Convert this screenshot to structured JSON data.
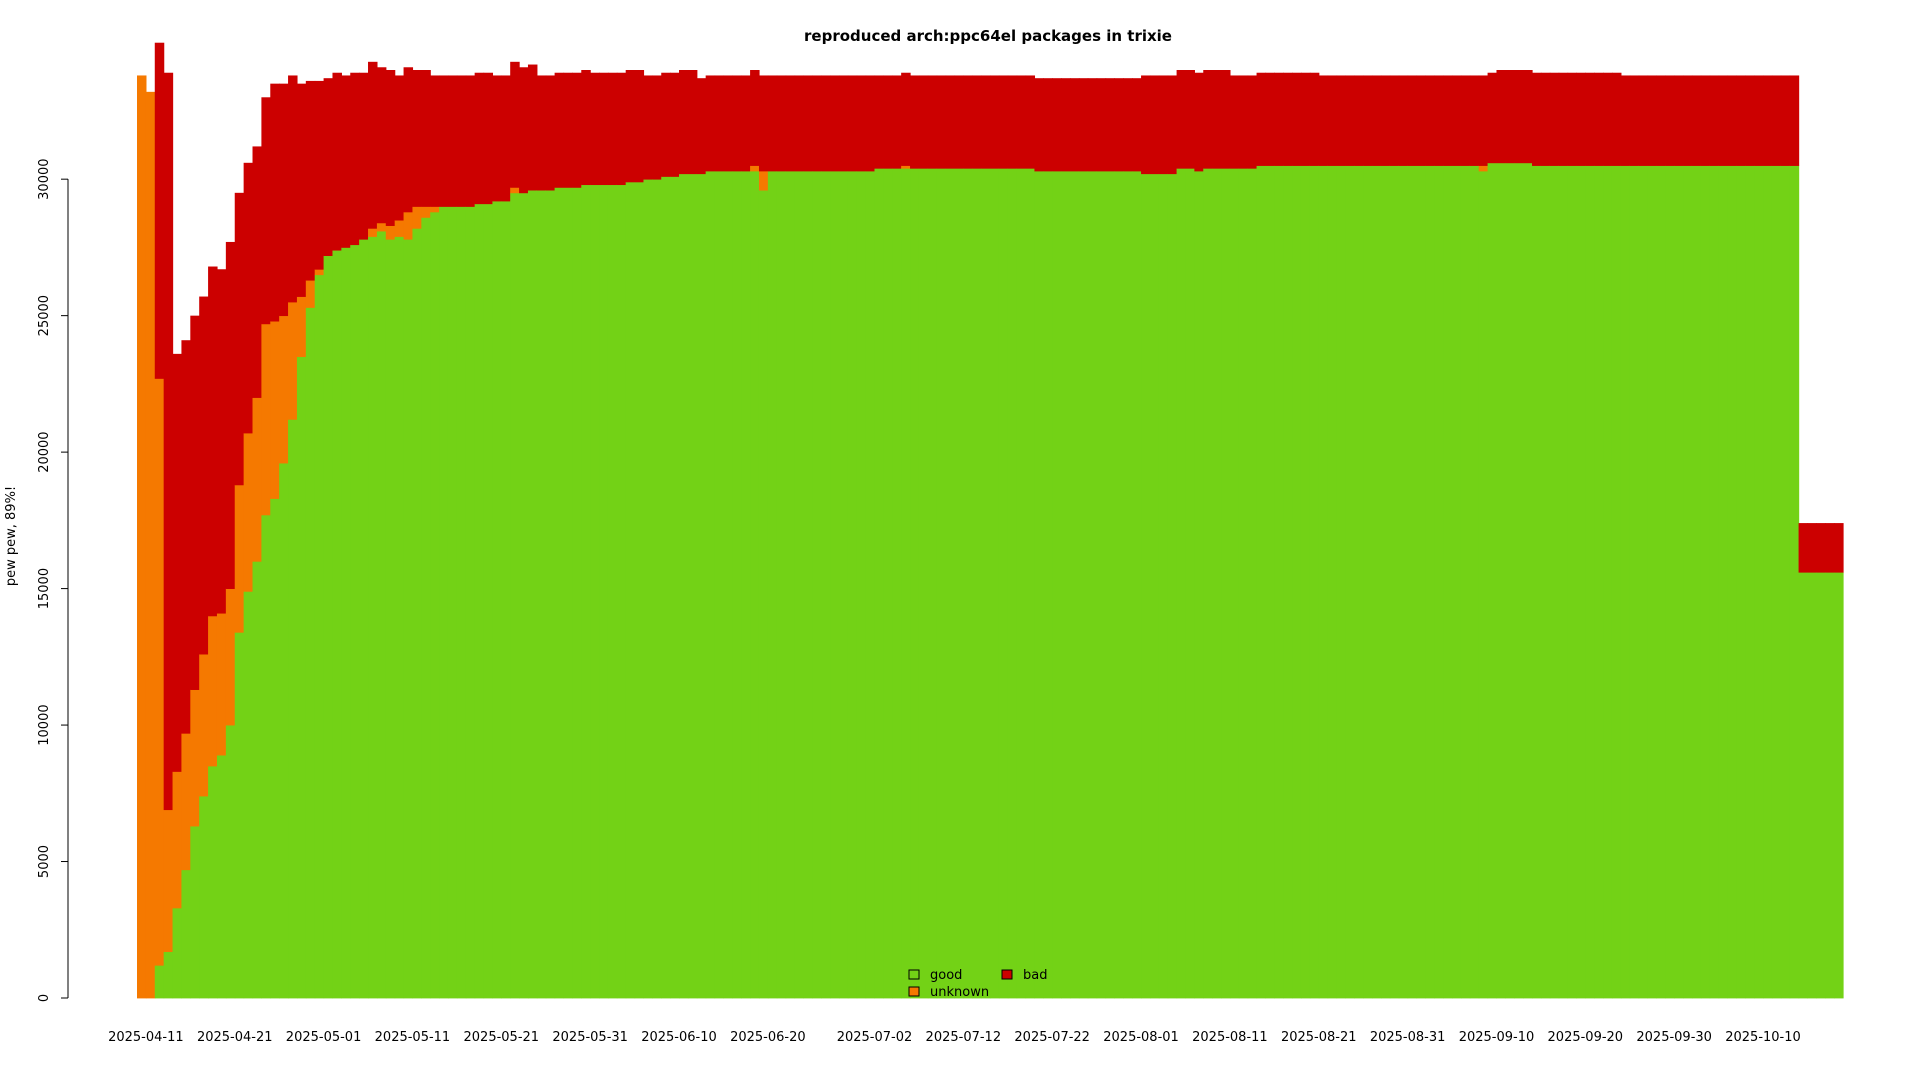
{
  "chart_data": {
    "type": "area",
    "title": "reproduced arch:ppc64el packages in trixie",
    "xlabel": "",
    "ylabel": "pew pew, 89%!",
    "ylim": [
      0,
      34000
    ],
    "yticks": [
      0,
      5000,
      10000,
      15000,
      20000,
      25000,
      30000
    ],
    "xrange": [
      "2025-04-10",
      "2025-10-19"
    ],
    "xticks": [
      "2025-04-11",
      "2025-04-21",
      "2025-05-01",
      "2025-05-11",
      "2025-05-21",
      "2025-05-31",
      "2025-06-10",
      "2025-06-20",
      "2025-07-02",
      "2025-07-12",
      "2025-07-22",
      "2025-08-01",
      "2025-08-11",
      "2025-08-21",
      "2025-08-31",
      "2025-09-10",
      "2025-09-20",
      "2025-09-30",
      "2025-10-10"
    ],
    "stacking": "good, unknown, bad stacked bottom-up",
    "colors": {
      "good": "#73d216",
      "unknown": "#f57900",
      "bad": "#cc0000"
    },
    "legend": {
      "position": "bottom-center",
      "items": [
        {
          "key": "good",
          "label": "good"
        },
        {
          "key": "unknown",
          "label": "unknown"
        },
        {
          "key": "bad",
          "label": "bad"
        }
      ]
    },
    "series": [
      {
        "name": "good",
        "points": [
          [
            "2025-04-10",
            0
          ],
          [
            "2025-04-12",
            1200
          ],
          [
            "2025-04-13",
            1700
          ],
          [
            "2025-04-14",
            3300
          ],
          [
            "2025-04-15",
            4700
          ],
          [
            "2025-04-16",
            6300
          ],
          [
            "2025-04-17",
            7400
          ],
          [
            "2025-04-18",
            8500
          ],
          [
            "2025-04-19",
            8900
          ],
          [
            "2025-04-20",
            10000
          ],
          [
            "2025-04-21",
            13400
          ],
          [
            "2025-04-22",
            14900
          ],
          [
            "2025-04-23",
            16000
          ],
          [
            "2025-04-24",
            17700
          ],
          [
            "2025-04-25",
            18300
          ],
          [
            "2025-04-26",
            19600
          ],
          [
            "2025-04-27",
            21200
          ],
          [
            "2025-04-28",
            23500
          ],
          [
            "2025-04-29",
            25300
          ],
          [
            "2025-04-30",
            26500
          ],
          [
            "2025-05-01",
            27200
          ],
          [
            "2025-05-02",
            27400
          ],
          [
            "2025-05-03",
            27500
          ],
          [
            "2025-05-04",
            27600
          ],
          [
            "2025-05-05",
            27800
          ],
          [
            "2025-05-06",
            27900
          ],
          [
            "2025-05-07",
            28100
          ],
          [
            "2025-05-08",
            27800
          ],
          [
            "2025-05-09",
            27900
          ],
          [
            "2025-05-10",
            27800
          ],
          [
            "2025-05-11",
            28200
          ],
          [
            "2025-05-12",
            28600
          ],
          [
            "2025-05-13",
            28800
          ],
          [
            "2025-05-14",
            29000
          ],
          [
            "2025-05-16",
            29000
          ],
          [
            "2025-05-18",
            29100
          ],
          [
            "2025-05-20",
            29200
          ],
          [
            "2025-05-22",
            29500
          ],
          [
            "2025-05-24",
            29600
          ],
          [
            "2025-05-27",
            29700
          ],
          [
            "2025-05-30",
            29800
          ],
          [
            "2025-06-04",
            29900
          ],
          [
            "2025-06-06",
            30000
          ],
          [
            "2025-06-08",
            30100
          ],
          [
            "2025-06-10",
            30200
          ],
          [
            "2025-06-13",
            30300
          ],
          [
            "2025-06-18",
            30300
          ],
          [
            "2025-06-19",
            29600
          ],
          [
            "2025-06-20",
            30300
          ],
          [
            "2025-06-24",
            30300
          ],
          [
            "2025-07-02",
            30400
          ],
          [
            "2025-07-08",
            30400
          ],
          [
            "2025-07-14",
            30400
          ],
          [
            "2025-07-20",
            30300
          ],
          [
            "2025-07-26",
            30300
          ],
          [
            "2025-08-01",
            30200
          ],
          [
            "2025-08-05",
            30400
          ],
          [
            "2025-08-07",
            30300
          ],
          [
            "2025-08-08",
            30400
          ],
          [
            "2025-08-14",
            30500
          ],
          [
            "2025-08-20",
            30500
          ],
          [
            "2025-08-30",
            30500
          ],
          [
            "2025-09-07",
            30500
          ],
          [
            "2025-09-08",
            30300
          ],
          [
            "2025-09-09",
            30600
          ],
          [
            "2025-09-14",
            30500
          ],
          [
            "2025-09-24",
            30500
          ],
          [
            "2025-10-14",
            15600
          ],
          [
            "2025-10-18",
            15600
          ]
        ]
      },
      {
        "name": "unknown",
        "points": [
          [
            "2025-04-10",
            33800
          ],
          [
            "2025-04-11",
            33200
          ],
          [
            "2025-04-12",
            21500
          ],
          [
            "2025-04-13",
            5200
          ],
          [
            "2025-04-14",
            5000
          ],
          [
            "2025-04-15",
            5000
          ],
          [
            "2025-04-16",
            5000
          ],
          [
            "2025-04-17",
            5200
          ],
          [
            "2025-04-18",
            5500
          ],
          [
            "2025-04-19",
            5200
          ],
          [
            "2025-04-20",
            5000
          ],
          [
            "2025-04-21",
            5400
          ],
          [
            "2025-04-22",
            5800
          ],
          [
            "2025-04-23",
            6000
          ],
          [
            "2025-04-24",
            7000
          ],
          [
            "2025-04-25",
            6500
          ],
          [
            "2025-04-26",
            5400
          ],
          [
            "2025-04-27",
            4300
          ],
          [
            "2025-04-28",
            2200
          ],
          [
            "2025-04-29",
            1000
          ],
          [
            "2025-04-30",
            200
          ],
          [
            "2025-05-01",
            0
          ],
          [
            "2025-05-06",
            300
          ],
          [
            "2025-05-08",
            500
          ],
          [
            "2025-05-09",
            600
          ],
          [
            "2025-05-10",
            1000
          ],
          [
            "2025-05-11",
            800
          ],
          [
            "2025-05-12",
            400
          ],
          [
            "2025-05-13",
            200
          ],
          [
            "2025-05-14",
            0
          ],
          [
            "2025-05-22",
            200
          ],
          [
            "2025-05-23",
            0
          ],
          [
            "2025-06-18",
            200
          ],
          [
            "2025-06-19",
            700
          ],
          [
            "2025-06-20",
            0
          ],
          [
            "2025-07-05",
            100
          ],
          [
            "2025-07-06",
            0
          ],
          [
            "2025-09-08",
            200
          ],
          [
            "2025-09-09",
            0
          ],
          [
            "2025-10-18",
            0
          ]
        ]
      },
      {
        "name": "bad",
        "points": [
          [
            "2025-04-10",
            0
          ],
          [
            "2025-04-11",
            0
          ],
          [
            "2025-04-12",
            12300
          ],
          [
            "2025-04-13",
            27000
          ],
          [
            "2025-04-14",
            15300
          ],
          [
            "2025-04-15",
            14400
          ],
          [
            "2025-04-16",
            13700
          ],
          [
            "2025-04-17",
            13100
          ],
          [
            "2025-04-18",
            12800
          ],
          [
            "2025-04-19",
            12600
          ],
          [
            "2025-04-20",
            12700
          ],
          [
            "2025-04-21",
            10700
          ],
          [
            "2025-04-22",
            9900
          ],
          [
            "2025-04-23",
            9200
          ],
          [
            "2025-04-24",
            8300
          ],
          [
            "2025-04-25",
            8700
          ],
          [
            "2025-04-26",
            8500
          ],
          [
            "2025-04-27",
            8300
          ],
          [
            "2025-04-28",
            7800
          ],
          [
            "2025-04-29",
            7300
          ],
          [
            "2025-04-30",
            6900
          ],
          [
            "2025-05-01",
            6500
          ],
          [
            "2025-05-03",
            6300
          ],
          [
            "2025-05-05",
            6100
          ],
          [
            "2025-05-07",
            5700
          ],
          [
            "2025-05-09",
            5300
          ],
          [
            "2025-05-11",
            5000
          ],
          [
            "2025-05-13",
            4800
          ],
          [
            "2025-05-16",
            4800
          ],
          [
            "2025-05-20",
            4600
          ],
          [
            "2025-05-25",
            4200
          ],
          [
            "2025-05-31",
            4100
          ],
          [
            "2025-06-06",
            3800
          ],
          [
            "2025-06-12",
            3500
          ],
          [
            "2025-06-20",
            3500
          ],
          [
            "2025-06-24",
            3500
          ],
          [
            "2025-07-02",
            3400
          ],
          [
            "2025-07-12",
            3400
          ],
          [
            "2025-07-22",
            3400
          ],
          [
            "2025-08-01",
            3600
          ],
          [
            "2025-08-11",
            3400
          ],
          [
            "2025-08-21",
            3300
          ],
          [
            "2025-08-31",
            3300
          ],
          [
            "2025-09-10",
            3400
          ],
          [
            "2025-09-24",
            3300
          ],
          [
            "2025-10-14",
            1800
          ],
          [
            "2025-10-18",
            1800
          ]
        ]
      }
    ]
  }
}
